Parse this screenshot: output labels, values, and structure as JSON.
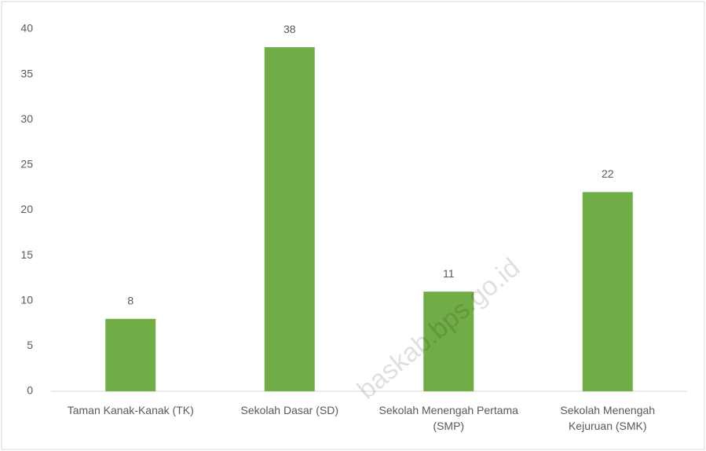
{
  "chart_data": {
    "type": "bar",
    "categories": [
      "Taman Kanak-Kanak (TK)",
      "Sekolah Dasar (SD)",
      "Sekolah Menengah Pertama (SMP)",
      "Sekolah Menengah Kejuruan (SMK)"
    ],
    "values": [
      8,
      38,
      11,
      22
    ],
    "color": "#70ad47",
    "ylim": [
      0,
      40
    ],
    "yticks": [
      0,
      5,
      10,
      15,
      20,
      25,
      30,
      35,
      40
    ],
    "grid": false,
    "watermark": "baskab.bps.go.id"
  }
}
